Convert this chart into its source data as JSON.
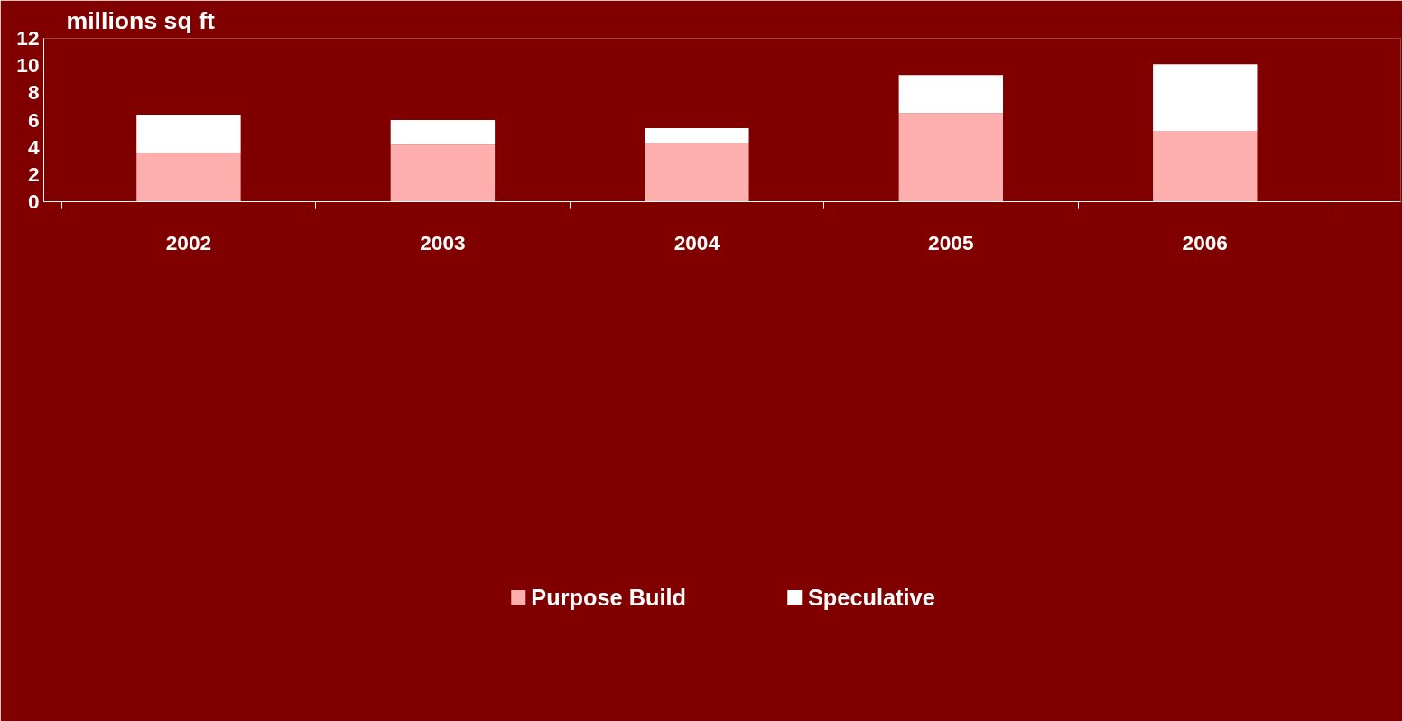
{
  "chart_data": {
    "type": "bar",
    "stacked": true,
    "ylabel": "millions sq ft",
    "categories": [
      "2002",
      "2003",
      "2004",
      "2005",
      "2006"
    ],
    "series": [
      {
        "name": "Purpose Build",
        "color": "#ffaeae",
        "values": [
          3.6,
          4.2,
          4.3,
          6.5,
          5.2
        ]
      },
      {
        "name": "Speculative",
        "color": "#ffffff",
        "values": [
          2.8,
          1.8,
          1.1,
          2.8,
          4.9
        ]
      }
    ],
    "ylim": [
      0,
      12
    ],
    "yticks": [
      0,
      2,
      4,
      6,
      8,
      10,
      12
    ],
    "grid": false,
    "legend": "bottom"
  }
}
